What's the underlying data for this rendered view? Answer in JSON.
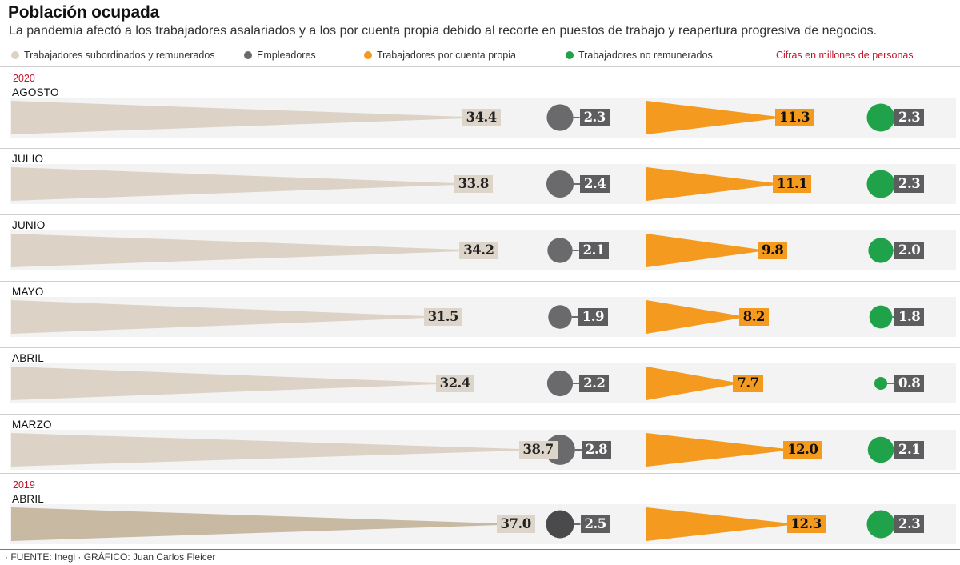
{
  "title": "Población ocupada",
  "subtitle": "La pandemia afectó a los trabajadores asalariados y a los por cuenta propia debido al recorte en puestos de trabajo y reapertura progresiva de negocios.",
  "legend": {
    "subordinados": "Trabajadores subordinados y remunerados",
    "empleadores": "Empleadores",
    "cuenta_propia": "Trabajadores por cuenta propia",
    "no_remunerados": "Trabajadores no remunerados",
    "unit_note": "Cifras en millones de personas"
  },
  "colors": {
    "subordinados": "#dcd3c6",
    "subordinados_2019": "#c8b9a3",
    "empleadores": "#6a6a6d",
    "empleadores_2019": "#4a4a4c",
    "cuenta_propia": "#f39a1f",
    "no_remunerados": "#1fa24a",
    "accent_red": "#c0172c"
  },
  "source": "FUENTE: Inegi · GRÁFICO: Juan Carlos Fleicer",
  "chart_data": {
    "type": "table",
    "title": "Población ocupada",
    "unit": "Cifras en millones de personas",
    "series_names": [
      "Trabajadores subordinados y remunerados",
      "Empleadores",
      "Trabajadores por cuenta propia",
      "Trabajadores no remunerados"
    ],
    "rows": [
      {
        "year": "2020",
        "month": "AGOSTO",
        "subordinados": 34.4,
        "empleadores": 2.3,
        "cuenta_propia": 11.3,
        "no_remunerados": 2.3
      },
      {
        "year": "",
        "month": "JULIO",
        "subordinados": 33.8,
        "empleadores": 2.4,
        "cuenta_propia": 11.1,
        "no_remunerados": 2.3
      },
      {
        "year": "",
        "month": "JUNIO",
        "subordinados": 34.2,
        "empleadores": 2.1,
        "cuenta_propia": 9.8,
        "no_remunerados": 2.0
      },
      {
        "year": "",
        "month": "MAYO",
        "subordinados": 31.5,
        "empleadores": 1.9,
        "cuenta_propia": 8.2,
        "no_remunerados": 1.8
      },
      {
        "year": "",
        "month": "ABRIL",
        "subordinados": 32.4,
        "empleadores": 2.2,
        "cuenta_propia": 7.7,
        "no_remunerados": 0.8
      },
      {
        "year": "",
        "month": "MARZO",
        "subordinados": 38.7,
        "empleadores": 2.8,
        "cuenta_propia": 12.0,
        "no_remunerados": 2.1
      },
      {
        "year": "2019",
        "month": "ABRIL",
        "subordinados": 37.0,
        "empleadores": 2.5,
        "cuenta_propia": 12.3,
        "no_remunerados": 2.3
      }
    ]
  }
}
